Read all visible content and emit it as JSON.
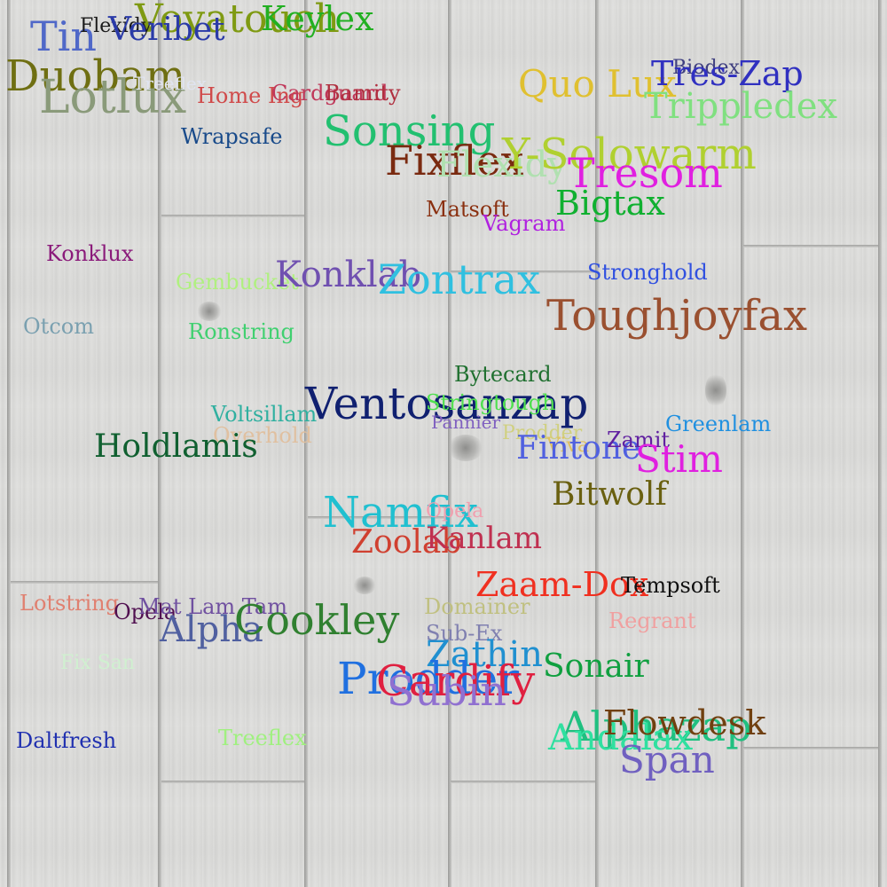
{
  "words": [
    {
      "text": "Voyatouch",
      "color": "#7f9a12"
    },
    {
      "text": "Keylex",
      "color": "#22b022"
    },
    {
      "text": "Tin",
      "color": "#5068c8"
    },
    {
      "text": "Flexidy",
      "color": "#1a1a1a"
    },
    {
      "text": "Veribet",
      "color": "#2a3aa8"
    },
    {
      "text": "Duobam",
      "color": "#6f6f12"
    },
    {
      "text": "Lotlux",
      "color": "#8a9a7a"
    },
    {
      "text": "Treeflex",
      "color": "#e0e4f0"
    },
    {
      "text": "Home Ing",
      "color": "#d04a4a"
    },
    {
      "text": "Cardguard",
      "color": "#c0385a"
    },
    {
      "text": "Bamity",
      "color": "#b03040"
    },
    {
      "text": "Sonsing",
      "color": "#22c070"
    },
    {
      "text": "Quo Lux",
      "color": "#e0c030"
    },
    {
      "text": "Biodex",
      "color": "#404080"
    },
    {
      "text": "Tres-Zap",
      "color": "#3030c0"
    },
    {
      "text": "Trippledex",
      "color": "#80e080"
    },
    {
      "text": "Wrapsafe",
      "color": "#184a8a"
    },
    {
      "text": "Fixflex",
      "color": "#7a2a10"
    },
    {
      "text": "Flexidy",
      "color": "#b0e0b0"
    },
    {
      "text": "Y-Solowarm",
      "color": "#b0d030"
    },
    {
      "text": "Tresom",
      "color": "#e020e0"
    },
    {
      "text": "Bigtax",
      "color": "#10b030"
    },
    {
      "text": "Matsoft",
      "color": "#8a3010"
    },
    {
      "text": "Vagram",
      "color": "#b020e0"
    },
    {
      "text": "Konklux",
      "color": "#8a1a7a"
    },
    {
      "text": "Gembucket",
      "color": "#b0f080"
    },
    {
      "text": "Konklab",
      "color": "#7050b0"
    },
    {
      "text": "Zontrax",
      "color": "#30c0e0"
    },
    {
      "text": "Stronghold",
      "color": "#3050e0"
    },
    {
      "text": "Otcom",
      "color": "#7aa0b0"
    },
    {
      "text": "Ronstring",
      "color": "#40d070"
    },
    {
      "text": "Toughjoyfax",
      "color": "#9a5030"
    },
    {
      "text": "Bytecard",
      "color": "#207030"
    },
    {
      "text": "Ventosanzap",
      "color": "#102070"
    },
    {
      "text": "Stringtough",
      "color": "#50e050"
    },
    {
      "text": "Voltsillam",
      "color": "#30b0a0"
    },
    {
      "text": "Pannier",
      "color": "#8060c0"
    },
    {
      "text": "Prodder",
      "color": "#d0d080"
    },
    {
      "text": "Greenlam",
      "color": "#2090e0"
    },
    {
      "text": "Overhold",
      "color": "#e0c0a0"
    },
    {
      "text": "Holdlamis",
      "color": "#106030"
    },
    {
      "text": "Viva",
      "color": "#e0c060"
    },
    {
      "text": "Fintone",
      "color": "#5060e0"
    },
    {
      "text": "Zamit",
      "color": "#6020a0"
    },
    {
      "text": "Stim",
      "color": "#e020e0"
    },
    {
      "text": "Bitwolf",
      "color": "#6a6010"
    },
    {
      "text": "Namfix",
      "color": "#20c0d0"
    },
    {
      "text": "Opela",
      "color": "#f0a0b0"
    },
    {
      "text": "Zoolab",
      "color": "#d04030"
    },
    {
      "text": "Kanlam",
      "color": "#c03050"
    },
    {
      "text": "Zaam-Dox",
      "color": "#f03020"
    },
    {
      "text": "Tempsoft",
      "color": "#101010"
    },
    {
      "text": "Lotstring",
      "color": "#e08070"
    },
    {
      "text": "Opela",
      "color": "#501050"
    },
    {
      "text": "Mat Lam Tam",
      "color": "#7050a0"
    },
    {
      "text": "Alpha",
      "color": "#5060a0"
    },
    {
      "text": "Cookley",
      "color": "#308030"
    },
    {
      "text": "Domainer",
      "color": "#c0c080"
    },
    {
      "text": "Regrant",
      "color": "#f0a0a0"
    },
    {
      "text": "Sub-Ex",
      "color": "#8080b0"
    },
    {
      "text": "Fix San",
      "color": "#d0f0d0"
    },
    {
      "text": "Zathin",
      "color": "#2090d0"
    },
    {
      "text": "Sonair",
      "color": "#10a040"
    },
    {
      "text": "Prodder",
      "color": "#2070e0"
    },
    {
      "text": "Cardify",
      "color": "#e02040"
    },
    {
      "text": "Subin",
      "color": "#9070d0"
    },
    {
      "text": "Alphazap",
      "color": "#20c080"
    },
    {
      "text": "Andalax",
      "color": "#30e0a0"
    },
    {
      "text": "Flowdesk",
      "color": "#704010"
    },
    {
      "text": "Span",
      "color": "#7060c0"
    },
    {
      "text": "Daltfresh",
      "color": "#2030b0"
    },
    {
      "text": "Treeflex",
      "color": "#a0f080"
    }
  ]
}
